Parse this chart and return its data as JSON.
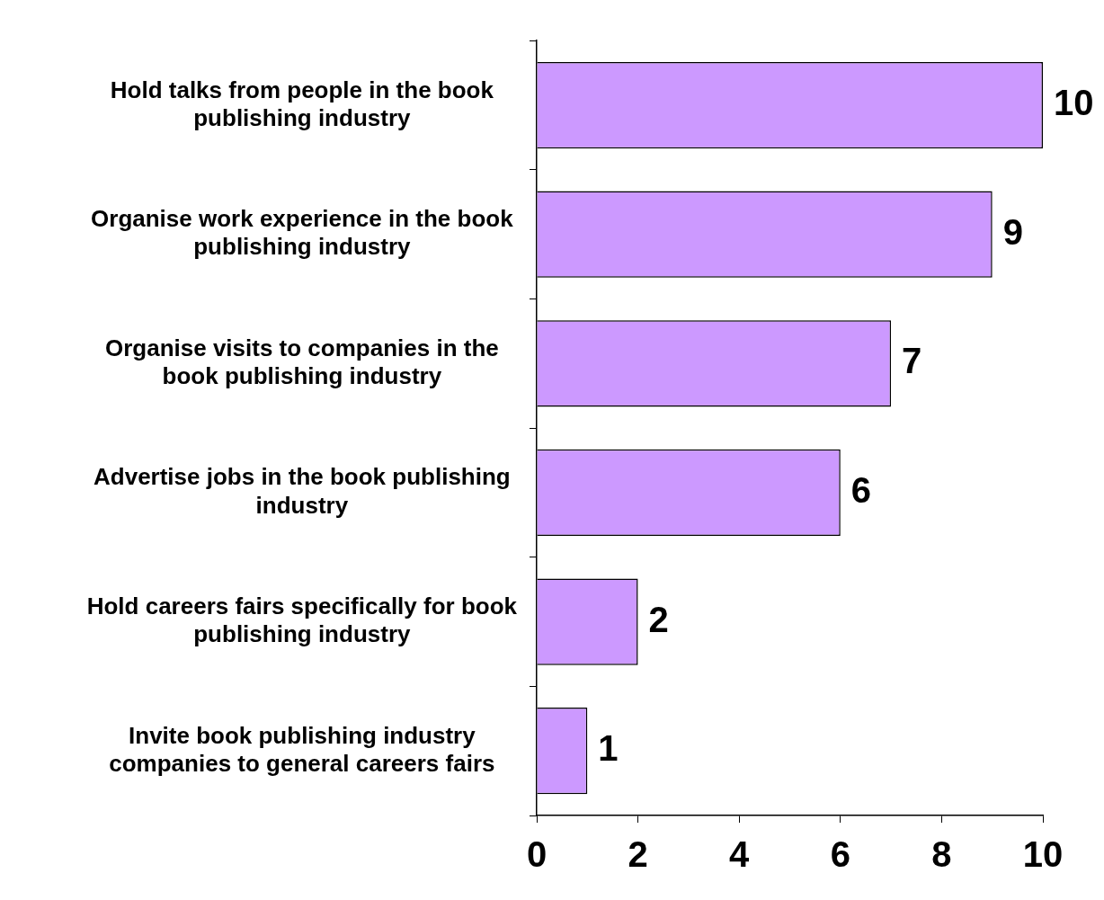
{
  "chart_data": {
    "type": "bar",
    "orientation": "horizontal",
    "categories": [
      "Hold talks from people in the book publishing industry",
      "Organise work experience in the book publishing industry",
      "Organise visits to companies in the book publishing industry",
      "Advertise jobs in the book publishing industry",
      "Hold careers fairs specifically for book publishing industry",
      "Invite book publishing industry companies to general careers fairs"
    ],
    "values": [
      10,
      9,
      7,
      6,
      2,
      1
    ],
    "color": "#cc99ff",
    "xlim": [
      0,
      10
    ],
    "xticks": [
      0,
      2,
      4,
      6,
      8,
      10
    ],
    "grid": false,
    "legend": false,
    "data_labels": true
  }
}
